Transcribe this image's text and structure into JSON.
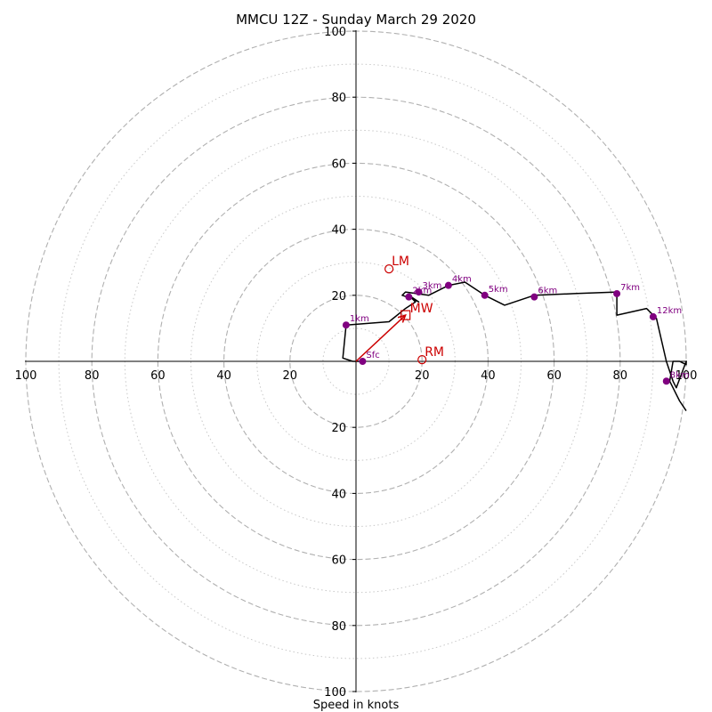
{
  "chart_data": {
    "type": "line",
    "title": "MMCU 12Z - Sunday March 29 2020",
    "xlabel": "Speed in knots",
    "xlim": [
      -100,
      100
    ],
    "ylim": [
      -100,
      100
    ],
    "major_rings": [
      20,
      40,
      60,
      80,
      100
    ],
    "minor_rings": [
      10,
      30,
      50,
      70,
      90
    ],
    "x_tick_labels": [
      "100",
      "80",
      "60",
      "40",
      "20",
      "20",
      "40",
      "60",
      "80",
      "100"
    ],
    "x_tick_values": [
      -100,
      -80,
      -60,
      -40,
      -20,
      20,
      40,
      60,
      80,
      100
    ],
    "y_tick_labels": [
      "100",
      "80",
      "60",
      "40",
      "20",
      "20",
      "40",
      "60",
      "80",
      "100"
    ],
    "y_tick_values": [
      100,
      80,
      60,
      40,
      20,
      -20,
      -40,
      -60,
      -80,
      -100
    ],
    "colors": {
      "hodograph": "#000000",
      "height_marker": "#800080",
      "storm_motion": "#cc0000",
      "ring": "#b0b0b0"
    },
    "hodograph": {
      "u": [
        2,
        -1,
        -4,
        -3,
        10,
        15,
        18,
        16,
        19,
        17,
        14,
        15,
        22,
        28,
        33,
        39,
        45,
        54,
        66,
        79,
        79,
        88,
        91,
        94,
        96,
        97,
        100,
        100,
        100,
        98,
        96,
        95,
        98,
        100
      ],
      "v": [
        0,
        0,
        1,
        11,
        12,
        16,
        18,
        20,
        18,
        19,
        20,
        21,
        20,
        23,
        24,
        20,
        17,
        20,
        20.5,
        21,
        14,
        16,
        13,
        0,
        -6,
        -8,
        0,
        0,
        -1,
        0,
        0,
        -6,
        -12,
        -15
      ]
    },
    "height_markers": [
      {
        "label": "Sfc",
        "u": 2,
        "v": 0
      },
      {
        "label": "1km",
        "u": -3,
        "v": 11
      },
      {
        "label": "2km",
        "u": 16,
        "v": 19.5
      },
      {
        "label": "3km",
        "u": 19,
        "v": 21
      },
      {
        "label": "4km",
        "u": 28,
        "v": 23
      },
      {
        "label": "5km",
        "u": 39,
        "v": 20
      },
      {
        "label": "6km",
        "u": 54,
        "v": 19.5
      },
      {
        "label": "7km",
        "u": 79,
        "v": 20.5
      },
      {
        "label": "8km",
        "u": 94,
        "v": -6
      },
      {
        "label": "12km",
        "u": 90,
        "v": 13.5
      }
    ],
    "storm_motion": {
      "mean_wind": {
        "label": "MW",
        "u": 15,
        "v": 14
      },
      "left_mover": {
        "label": "LM",
        "u": 10,
        "v": 28
      },
      "right_mover": {
        "label": "RM",
        "u": 20,
        "v": 0.5
      },
      "vector": {
        "from": [
          0,
          0
        ],
        "to": [
          15,
          14
        ]
      }
    }
  }
}
